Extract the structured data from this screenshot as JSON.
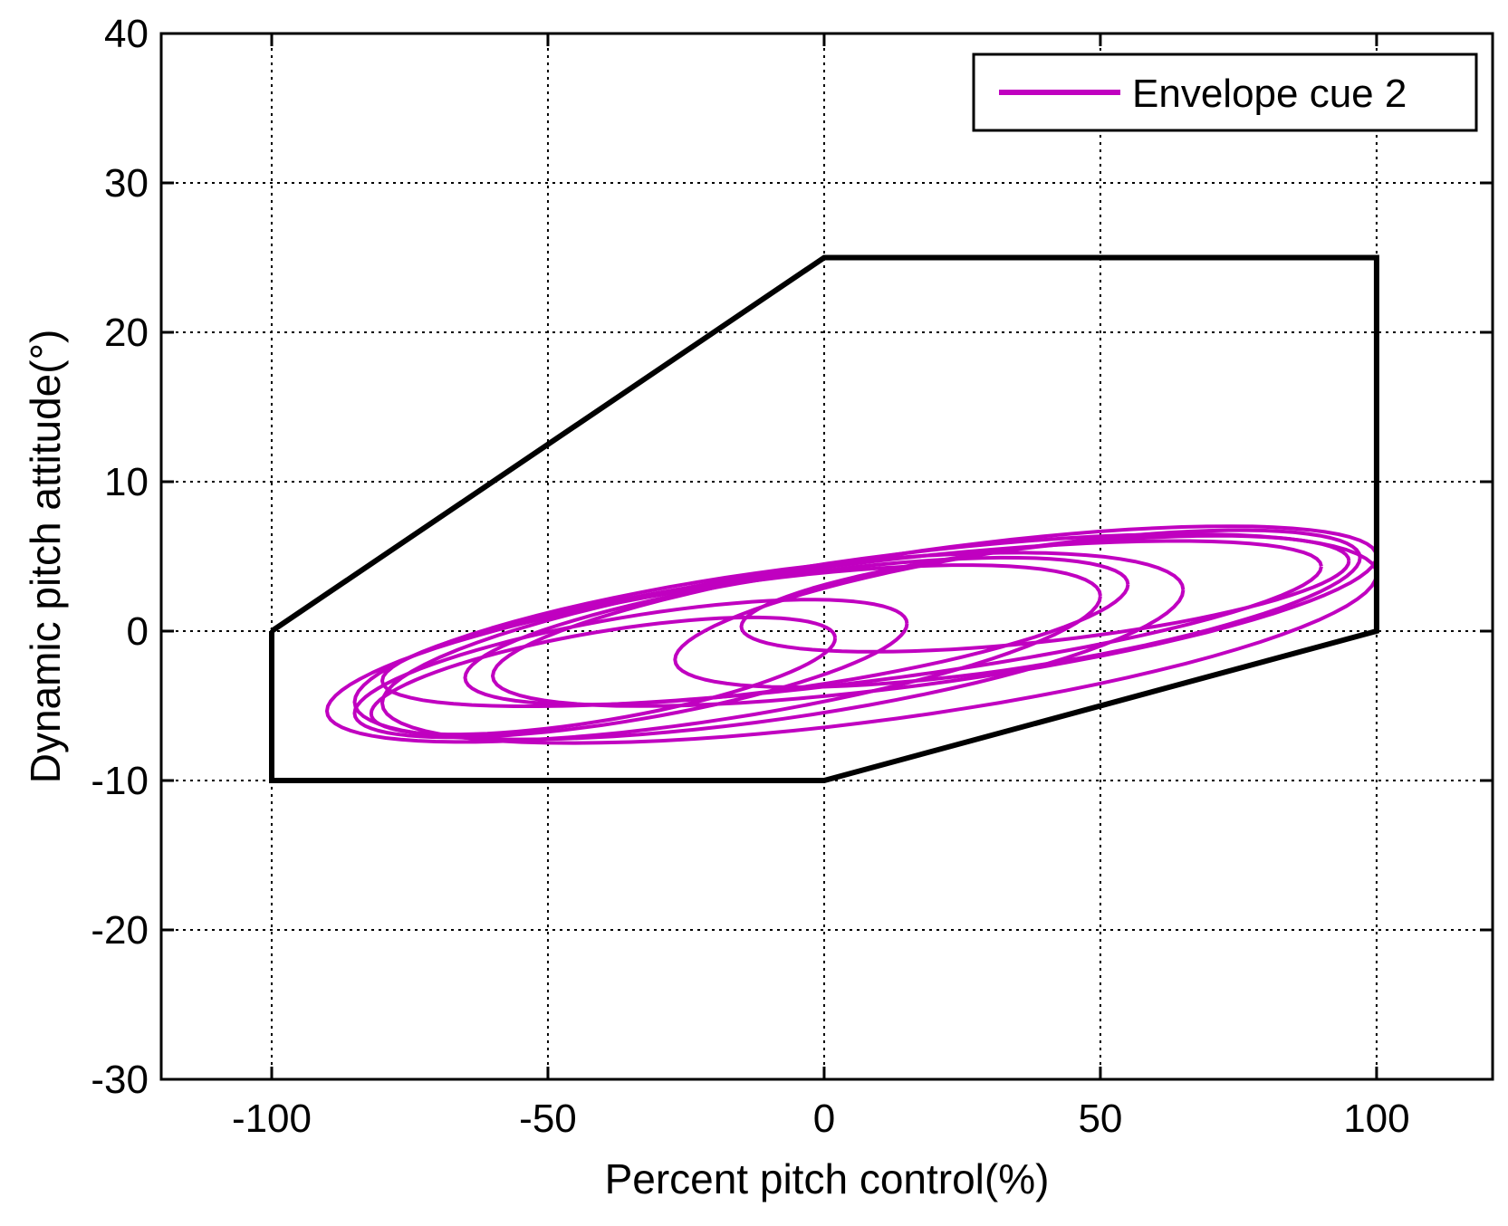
{
  "chart_data": {
    "type": "line",
    "xlabel": "Percent pitch control(%)",
    "ylabel": "Dynamic pitch attitude(°)",
    "xlim": [
      -120,
      121
    ],
    "ylim": [
      -30,
      40
    ],
    "xticks": [
      -100,
      -50,
      0,
      50,
      100
    ],
    "yticks": [
      -30,
      -20,
      -10,
      0,
      10,
      20,
      30,
      40
    ],
    "xtick_labels": [
      "-100",
      "-50",
      "0",
      "50",
      "100"
    ],
    "ytick_labels": [
      "-30",
      "-20",
      "-10",
      "0",
      "10",
      "20",
      "30",
      "40"
    ],
    "grid": true,
    "grid_style": "dotted",
    "legend_position": "top-right",
    "envelope_boundary": {
      "color": "#000000",
      "x": [
        -100,
        0,
        100,
        100,
        0,
        -100,
        -100
      ],
      "y": [
        0,
        25,
        25,
        0,
        -10,
        -10,
        0
      ]
    },
    "series": [
      {
        "name": "Envelope cue 2",
        "color": "#C000C0",
        "loops": [
          {
            "cx": -20,
            "cy": -1.5,
            "rx": 70,
            "ry": 4.5,
            "tilt": 0.055
          },
          {
            "cx": -10,
            "cy": -1.0,
            "rx": 75,
            "ry": 5.0,
            "tilt": 0.05
          },
          {
            "cx": 5,
            "cy": 0.5,
            "rx": 85,
            "ry": 4.0,
            "tilt": 0.045
          },
          {
            "cx": 20,
            "cy": 1.0,
            "rx": 80,
            "ry": 4.5,
            "tilt": 0.05
          },
          {
            "cx": 35,
            "cy": 1.5,
            "rx": 62,
            "ry": 4.0,
            "tilt": 0.055
          },
          {
            "cx": -35,
            "cy": -2.5,
            "rx": 50,
            "ry": 3.5,
            "tilt": 0.06
          },
          {
            "cx": 40,
            "cy": 2.5,
            "rx": 55,
            "ry": 3.2,
            "tilt": 0.04
          },
          {
            "cx": -40,
            "cy": -3.0,
            "rx": 42,
            "ry": 3.0,
            "tilt": 0.06
          },
          {
            "cx": 10,
            "cy": -0.5,
            "rx": 90,
            "ry": 5.5,
            "tilt": 0.048
          },
          {
            "cx": -5,
            "cy": 0.0,
            "rx": 60,
            "ry": 3.8,
            "tilt": 0.052
          }
        ]
      }
    ]
  }
}
